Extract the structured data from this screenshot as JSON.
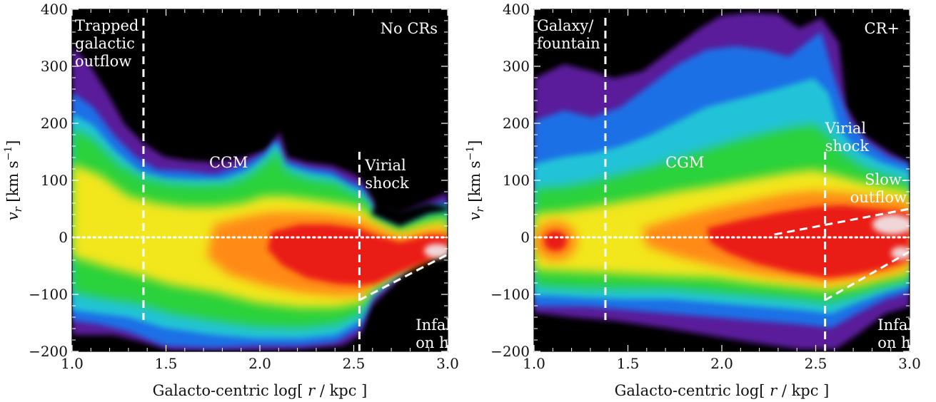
{
  "chart_data": [
    {
      "type": "heatmap",
      "x_axis_title": {
        "pre": "Galacto-centric log[",
        "var": " r ",
        "post": "/ kpc ]"
      },
      "y_axis_title": {
        "var": "v",
        "sub": "r",
        "units": " [km s",
        "sup": "−1",
        "close": "]"
      },
      "xlim": [
        1.0,
        3.0
      ],
      "ylim": [
        -200,
        400
      ],
      "x_ticks": [
        1.0,
        1.5,
        2.0,
        2.5,
        3.0
      ],
      "x_tick_labels": [
        "1.0",
        "1.5",
        "2.0",
        "2.5",
        "3.0"
      ],
      "y_ticks": [
        -200,
        -100,
        0,
        100,
        200,
        300,
        400
      ],
      "y_tick_labels": [
        "−200",
        "−100",
        "0",
        "100",
        "200",
        "300",
        "400"
      ],
      "zero_line": 0,
      "panel_label": "No CRs",
      "vertical_lines": [
        {
          "x": 1.38,
          "y_range": [
            -145,
            385
          ]
        },
        {
          "x": 2.53,
          "y_range": [
            -200,
            150
          ]
        }
      ],
      "trend_lines": [
        {
          "x": [
            2.53,
            3.0
          ],
          "y": [
            -110,
            -30
          ]
        }
      ],
      "annotations": [
        {
          "lines": [
            "Trapped",
            "galactic",
            "outflow"
          ],
          "x": 1.0,
          "y": 385
        },
        {
          "lines": [
            "CGM"
          ],
          "x": 1.73,
          "y": 145
        },
        {
          "lines": [
            "Virial",
            "shock"
          ],
          "x": 2.56,
          "y": 140
        },
        {
          "lines": [
            "Infall",
            "on halo"
          ],
          "x": 2.83,
          "y": -140
        }
      ],
      "density_ridge": [
        {
          "x": 1.0,
          "center": 30,
          "upper": 190,
          "lower": -150
        },
        {
          "x": 1.2,
          "center": 20,
          "upper": 160,
          "lower": -140
        },
        {
          "x": 1.38,
          "center": 10,
          "upper": 95,
          "lower": -130
        },
        {
          "x": 1.6,
          "center": 0,
          "upper": 100,
          "lower": -150
        },
        {
          "x": 1.8,
          "center": -5,
          "upper": 125,
          "lower": -165
        },
        {
          "x": 2.08,
          "center": -10,
          "upper": 175,
          "lower": -175
        },
        {
          "x": 2.3,
          "center": -20,
          "upper": 125,
          "lower": -175
        },
        {
          "x": 2.53,
          "center": -50,
          "upper": 70,
          "lower": -160
        },
        {
          "x": 2.8,
          "center": -60,
          "upper": 20,
          "lower": -110
        },
        {
          "x": 3.0,
          "center": -25,
          "upper": 55,
          "lower": -60
        }
      ]
    },
    {
      "type": "heatmap",
      "x_axis_title": {
        "pre": "Galacto-centric log[",
        "var": " r ",
        "post": "/ kpc ]"
      },
      "y_axis_title": {
        "var": "v",
        "sub": "r",
        "units": " [km s",
        "sup": "−1",
        "close": "]"
      },
      "xlim": [
        1.0,
        3.0
      ],
      "ylim": [
        -200,
        400
      ],
      "x_ticks": [
        1.0,
        1.5,
        2.0,
        2.5,
        3.0
      ],
      "x_tick_labels": [
        "1.0",
        "1.5",
        "2.0",
        "2.5",
        "3.0"
      ],
      "y_ticks": [
        -200,
        -100,
        0,
        100,
        200,
        300,
        400
      ],
      "y_tick_labels": [
        "−200",
        "−100",
        "0",
        "100",
        "200",
        "300",
        "400"
      ],
      "zero_line": 0,
      "panel_label": "CR+",
      "vertical_lines": [
        {
          "x": 1.38,
          "y_range": [
            -145,
            385
          ]
        },
        {
          "x": 2.55,
          "y_range": [
            -200,
            150
          ]
        }
      ],
      "trend_lines": [
        {
          "x": [
            2.28,
            3.0
          ],
          "y": [
            5,
            50
          ]
        },
        {
          "x": [
            2.55,
            3.0
          ],
          "y": [
            -110,
            -25
          ]
        }
      ],
      "annotations": [
        {
          "lines": [
            "Galaxy/",
            "fountain"
          ],
          "x": 1.0,
          "y": 385
        },
        {
          "lines": [
            "CGM"
          ],
          "x": 1.7,
          "y": 145
        },
        {
          "lines": [
            "Virial",
            "shock"
          ],
          "x": 2.55,
          "y": 205
        },
        {
          "lines": [
            "Slow-",
            "outflow"
          ],
          "x": 3.0,
          "y": 115
        },
        {
          "lines": [
            "Infall",
            "on halo"
          ],
          "x": 2.83,
          "y": -140
        }
      ],
      "density_ridge": [
        {
          "x": 1.0,
          "center": 0,
          "upper": 200,
          "lower": -130
        },
        {
          "x": 1.1,
          "center": -5,
          "upper": 260,
          "lower": -130
        },
        {
          "x": 1.38,
          "center": -10,
          "upper": 180,
          "lower": -125
        },
        {
          "x": 1.7,
          "center": -10,
          "upper": 250,
          "lower": -125
        },
        {
          "x": 2.0,
          "center": -10,
          "upper": 330,
          "lower": -130
        },
        {
          "x": 2.4,
          "center": -10,
          "upper": 380,
          "lower": -145
        },
        {
          "x": 2.55,
          "center": -15,
          "upper": 170,
          "lower": -170
        },
        {
          "x": 2.8,
          "center": -10,
          "upper": 90,
          "lower": -140
        },
        {
          "x": 3.0,
          "center": -10,
          "upper": 70,
          "lower": -100
        }
      ]
    }
  ]
}
